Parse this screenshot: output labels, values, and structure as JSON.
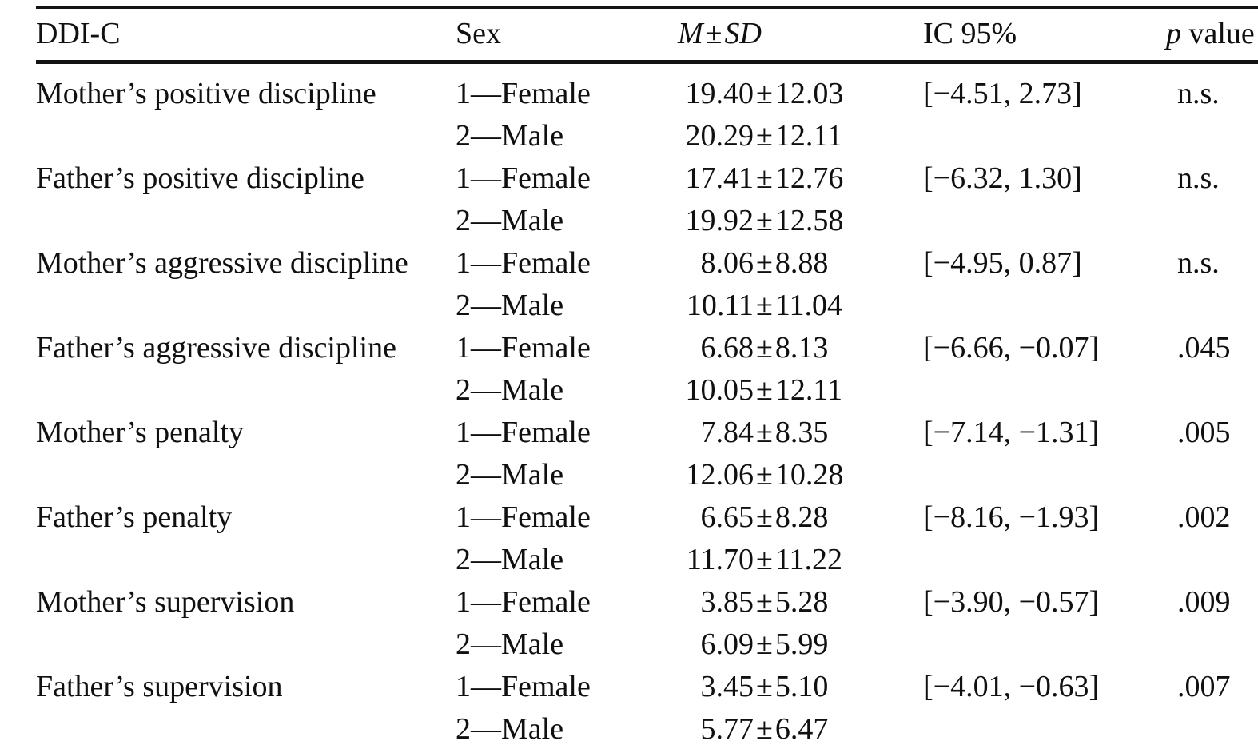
{
  "table": {
    "col_headers": {
      "ddic": "DDI-C",
      "sex": "Sex",
      "msd_m": "M",
      "msd_pm": "±",
      "msd_sd": "SD",
      "ci": "IC 95%",
      "p_italic": "p",
      "p_rest": " value"
    },
    "sex_labels": {
      "female": "1—Female",
      "male": "2—Male"
    },
    "pm": "±",
    "rows": [
      {
        "label": "Mother’s positive discipline",
        "f_m": "19.40",
        "f_sd": "12.03",
        "m_m": "20.29",
        "m_sd": "12.11",
        "ci": "[−4.51, 2.73]",
        "p": "n.s."
      },
      {
        "label": "Father’s positive discipline",
        "f_m": "17.41",
        "f_sd": "12.76",
        "m_m": "19.92",
        "m_sd": "12.58",
        "ci": "[−6.32, 1.30]",
        "p": "n.s."
      },
      {
        "label": "Mother’s aggressive discipline",
        "f_m": "8.06",
        "f_sd": "8.88",
        "m_m": "10.11",
        "m_sd": "11.04",
        "ci": "[−4.95, 0.87]",
        "p": "n.s."
      },
      {
        "label": "Father’s aggressive discipline",
        "f_m": "6.68",
        "f_sd": "8.13",
        "m_m": "10.05",
        "m_sd": "12.11",
        "ci": "[−6.66, −0.07]",
        "p": ".045"
      },
      {
        "label": "Mother’s penalty",
        "f_m": "7.84",
        "f_sd": "8.35",
        "m_m": "12.06",
        "m_sd": "10.28",
        "ci": "[−7.14, −1.31]",
        "p": ".005"
      },
      {
        "label": "Father’s penalty",
        "f_m": "6.65",
        "f_sd": "8.28",
        "m_m": "11.70",
        "m_sd": "11.22",
        "ci": "[−8.16, −1.93]",
        "p": ".002"
      },
      {
        "label": "Mother’s supervision",
        "f_m": "3.85",
        "f_sd": "5.28",
        "m_m": "6.09",
        "m_sd": "5.99",
        "ci": "[−3.90, −0.57]",
        "p": ".009"
      },
      {
        "label": "Father’s supervision",
        "f_m": "3.45",
        "f_sd": "5.10",
        "m_m": "5.77",
        "m_sd": "6.47",
        "ci": "[−4.01, −0.63]",
        "p": ".007"
      }
    ]
  }
}
